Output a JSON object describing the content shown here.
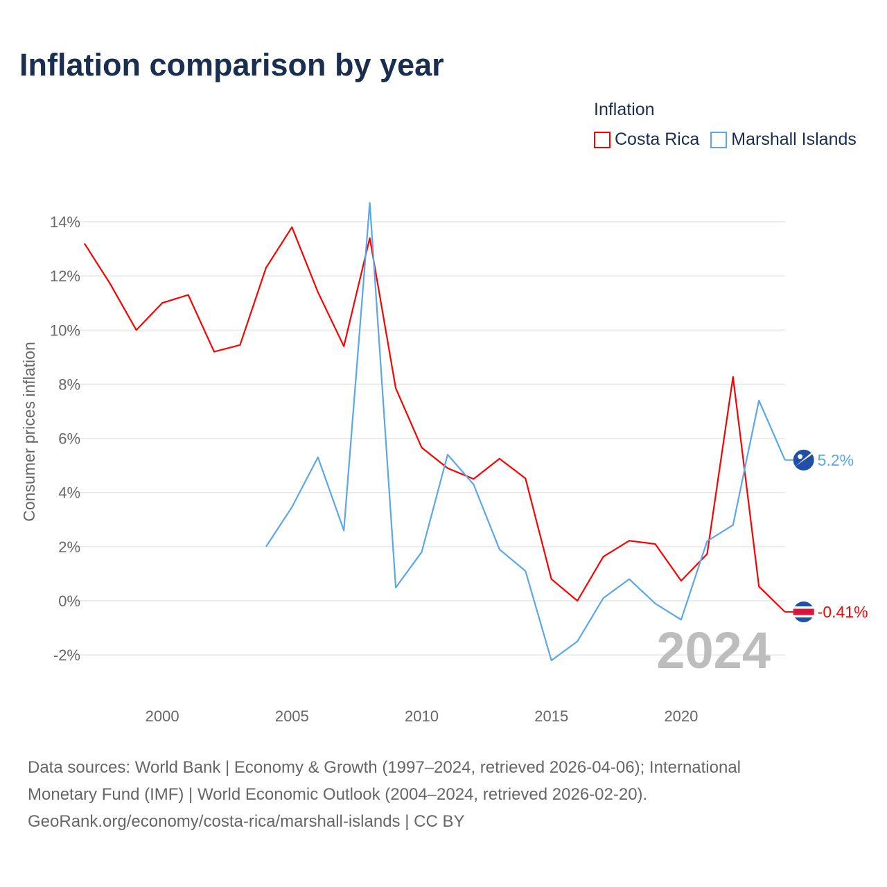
{
  "chart_data": {
    "type": "line",
    "title": "Inflation comparison by year",
    "xlabel": "",
    "ylabel": "Consumer prices inflation",
    "xlim": [
      1997,
      2024
    ],
    "ylim": [
      -3.2,
      15
    ],
    "x_ticks": [
      2000,
      2005,
      2010,
      2015,
      2020
    ],
    "y_ticks": [
      -2,
      0,
      2,
      4,
      6,
      8,
      10,
      12,
      14
    ],
    "y_tick_labels": [
      "-2%",
      "0%",
      "2%",
      "4%",
      "6%",
      "8%",
      "10%",
      "12%",
      "14%"
    ],
    "grid": true,
    "legend_title": "Inflation",
    "legend_position": "top-right",
    "watermark_year": "2024",
    "series": [
      {
        "name": "Costa Rica",
        "color": "#ff0000",
        "end_label": "-0.41%",
        "x": [
          1997,
          1998,
          1999,
          2000,
          2001,
          2002,
          2003,
          2004,
          2005,
          2006,
          2007,
          2008,
          2009,
          2010,
          2011,
          2012,
          2013,
          2014,
          2015,
          2016,
          2017,
          2018,
          2019,
          2020,
          2021,
          2022,
          2023,
          2024
        ],
        "values": [
          13.2,
          11.7,
          10.0,
          11.0,
          11.3,
          9.2,
          9.45,
          12.3,
          13.8,
          11.4,
          9.4,
          13.4,
          7.85,
          5.66,
          4.9,
          4.5,
          5.25,
          4.52,
          0.8,
          0.0,
          1.63,
          2.22,
          2.1,
          0.74,
          1.73,
          8.27,
          0.53,
          -0.41
        ]
      },
      {
        "name": "Marshall Islands",
        "color": "#5aa7ea",
        "end_label": "5.2%",
        "x": [
          2004,
          2005,
          2006,
          2007,
          2008,
          2009,
          2010,
          2011,
          2012,
          2013,
          2014,
          2015,
          2016,
          2017,
          2018,
          2019,
          2020,
          2021,
          2022,
          2023,
          2024
        ],
        "values": [
          2.0,
          3.46,
          5.3,
          2.6,
          14.7,
          0.49,
          1.8,
          5.4,
          4.3,
          1.9,
          1.1,
          -2.2,
          -1.5,
          0.1,
          0.8,
          -0.1,
          -0.7,
          2.2,
          2.8,
          7.4,
          5.2
        ]
      }
    ]
  },
  "source": {
    "line1": "Data sources: World Bank | Economy & Growth (1997–2024, retrieved 2026-04-06); International",
    "line2": "Monetary Fund (IMF) | World Economic Outlook (2004–2024, retrieved 2026-02-20).",
    "line3": "GeoRank.org/economy/costa-rica/marshall-islands | CC BY"
  }
}
